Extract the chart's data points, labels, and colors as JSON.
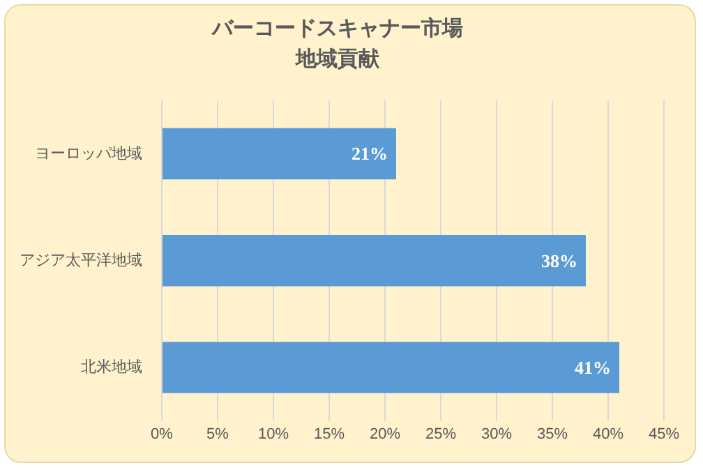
{
  "chart_data": {
    "type": "bar",
    "orientation": "horizontal",
    "title": "バーコードスキャナー市場",
    "subtitle": "地域貢献",
    "categories": [
      "ヨーロッパ地域",
      "アジア太平洋地域",
      "北米地域"
    ],
    "values": [
      21,
      38,
      41
    ],
    "color": "#5b9bd5",
    "value_labels": [
      "21%",
      "38%",
      "41%"
    ],
    "xlim": [
      0,
      45
    ],
    "xticks": [
      {
        "value": 0,
        "label": "0%"
      },
      {
        "value": 5,
        "label": "5%"
      },
      {
        "value": 10,
        "label": "10%"
      },
      {
        "value": 15,
        "label": "15%"
      },
      {
        "value": 20,
        "label": "20%"
      },
      {
        "value": 25,
        "label": "25%"
      },
      {
        "value": 30,
        "label": "30%"
      },
      {
        "value": 35,
        "label": "35%"
      },
      {
        "value": 40,
        "label": "40%"
      },
      {
        "value": 45,
        "label": "45%"
      }
    ],
    "grid": "x",
    "legend": false
  }
}
